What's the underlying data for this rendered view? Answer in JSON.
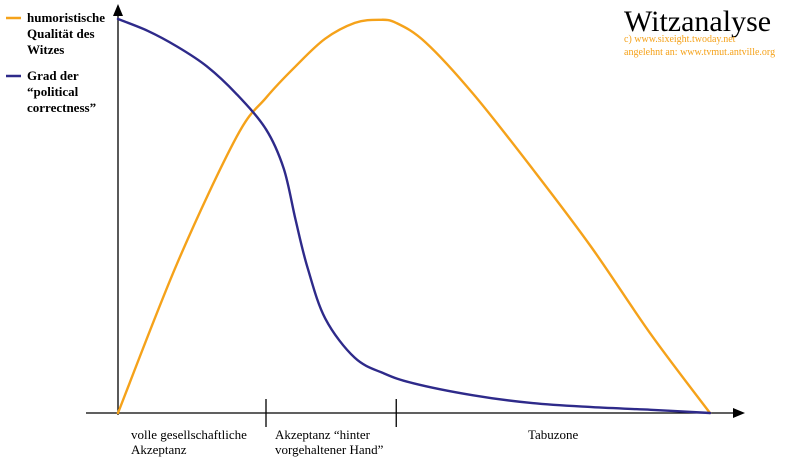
{
  "chart_data": {
    "type": "line",
    "title": "Witzanalyse",
    "credits": [
      "c) www.sixeight.twoday.net",
      "angelehnt an: www.tvmut.antville.org"
    ],
    "xlabel": "",
    "ylabel": "",
    "xlim": [
      0,
      100
    ],
    "ylim": [
      0,
      100
    ],
    "grid": false,
    "legend_position": "top-left",
    "zones": [
      {
        "label_lines": [
          "volle gesellschaftliche",
          "Akzeptanz"
        ],
        "start": 0,
        "end": 25
      },
      {
        "label_lines": [
          "Akzeptanz “hinter",
          "vorgehaltener Hand”"
        ],
        "start": 25,
        "end": 47
      },
      {
        "label_lines": [
          "Tabuzone"
        ],
        "start": 47,
        "end": 100
      }
    ],
    "series": [
      {
        "name_lines": [
          "humoristische",
          "Qualität des",
          "Witzes"
        ],
        "color": "#f5a21a",
        "x": [
          0,
          10,
          20,
          25,
          30,
          35,
          40,
          44,
          47,
          52,
          60,
          70,
          80,
          90,
          100
        ],
        "y": [
          0,
          38,
          70,
          80,
          88,
          95,
          99,
          99.8,
          99,
          94,
          81,
          62,
          42,
          20,
          0
        ]
      },
      {
        "name_lines": [
          "Grad der",
          "“political",
          "correctness”"
        ],
        "color": "#2e2a8a",
        "x": [
          0,
          5,
          10,
          15,
          20,
          25,
          28,
          30,
          32,
          35,
          40,
          45,
          50,
          60,
          70,
          80,
          90,
          100
        ],
        "y": [
          100,
          97,
          93,
          88,
          81,
          72,
          62,
          49,
          37,
          24,
          14,
          10,
          7.5,
          4.5,
          2.5,
          1.5,
          0.8,
          0
        ]
      }
    ],
    "colors": {
      "axis": "#000000",
      "credit": "#f5a21a"
    }
  }
}
